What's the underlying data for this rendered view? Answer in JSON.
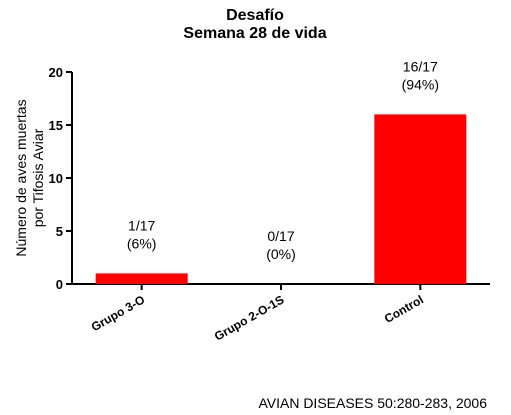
{
  "chart_data": {
    "type": "bar",
    "title": "Desafío",
    "subtitle": "Semana 28 de vida",
    "ylabel_line1": "Número de aves muertas",
    "ylabel_line2": "por Tifosis Aviar",
    "ylim": [
      0,
      20
    ],
    "yticks": [
      0,
      5,
      10,
      15,
      20
    ],
    "grid": false,
    "legend": "none",
    "categories": [
      "Grupo 3-O",
      "Grupo 2-O-1S",
      "Control"
    ],
    "values": [
      1,
      0,
      16
    ],
    "labels_fraction": [
      "1/17",
      "0/17",
      "16/17"
    ],
    "labels_percent": [
      "(6%)",
      "(0%)",
      "(94%)"
    ],
    "bar_color": "#ff0000"
  },
  "source": "AVIAN DISEASES 50:280-283, 2006"
}
